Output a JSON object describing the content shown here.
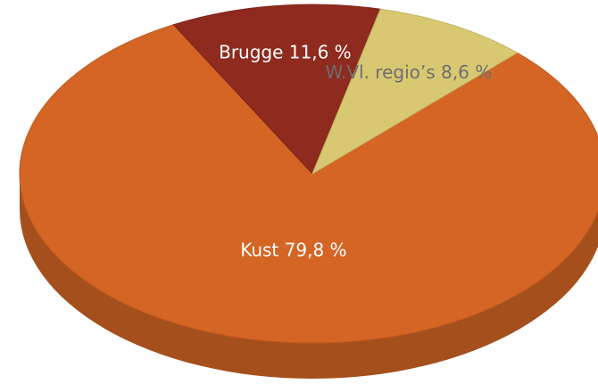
{
  "chart_data": {
    "type": "pie",
    "categories": [
      "Kust",
      "Brugge",
      "W.Vl. regio’s"
    ],
    "values": [
      79.8,
      11.6,
      8.6
    ],
    "value_labels": [
      "79,8 %",
      "11,6 %",
      "8,6 %"
    ],
    "colors": [
      "#d46524",
      "#8e2a1e",
      "#d8c872"
    ],
    "label_colors": [
      "#ffffff",
      "#ffffff",
      "#6e6e6e"
    ]
  }
}
